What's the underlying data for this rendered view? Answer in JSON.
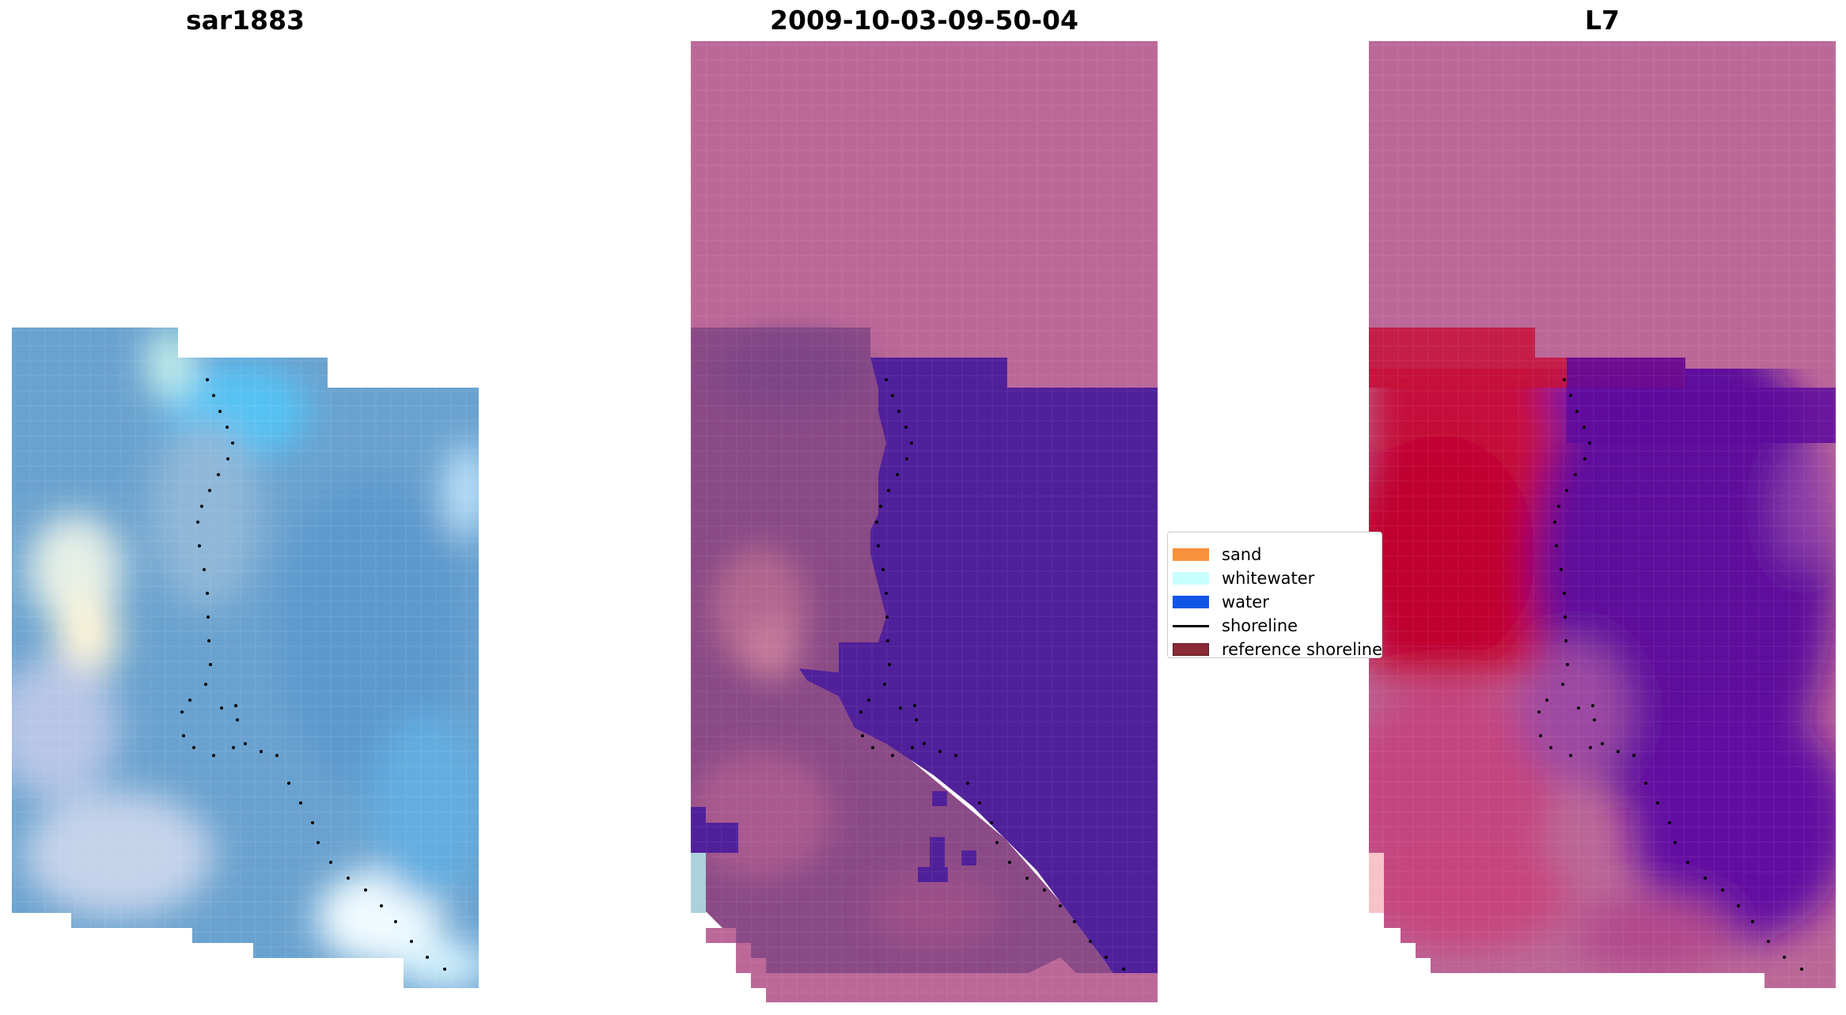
{
  "panels": {
    "left": {
      "title": "sar1883"
    },
    "middle": {
      "title": "2009-10-03-09-50-04"
    },
    "right": {
      "title": "L7"
    }
  },
  "legend": {
    "items": [
      {
        "label": "sand",
        "color": "#f7913d",
        "kind": "patch"
      },
      {
        "label": "whitewater",
        "color": "#c9ffff",
        "kind": "patch"
      },
      {
        "label": "water",
        "color": "#1155e6",
        "kind": "patch"
      },
      {
        "label": "shoreline",
        "color": "#000000",
        "kind": "line"
      },
      {
        "label": "reference shoreline",
        "color": "#8b2a35",
        "kind": "patch"
      }
    ]
  },
  "colors": {
    "rgb_base": "#6aa2cf",
    "nodata_pink": "#bb6898",
    "water_class": "#50209a",
    "land_class": "#8a4a86",
    "ndwi_land": "#c6103a",
    "ndwi_water": "#5e0a9c",
    "shoreline_dots": "#000000"
  }
}
